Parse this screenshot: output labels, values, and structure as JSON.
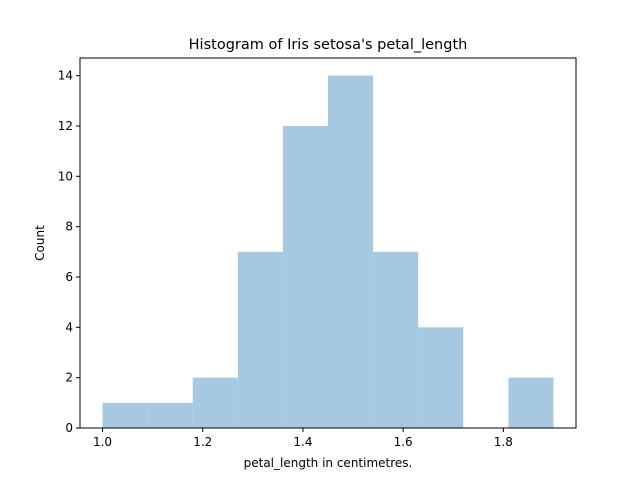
{
  "chart_data": {
    "type": "bar",
    "title": "Histogram of Iris setosa's petal_length",
    "xlabel": "petal_length in centimetres.",
    "ylabel": "Count",
    "bin_edges": [
      1.0,
      1.09,
      1.18,
      1.27,
      1.36,
      1.45,
      1.54,
      1.63,
      1.72,
      1.81,
      1.9
    ],
    "values": [
      1,
      1,
      2,
      7,
      12,
      14,
      7,
      4,
      0,
      2
    ],
    "xlim": [
      0.955,
      1.945
    ],
    "ylim": [
      0,
      14.7
    ],
    "xticks": [
      1.0,
      1.2,
      1.4,
      1.6,
      1.8
    ],
    "xtick_labels": [
      "1.0",
      "1.2",
      "1.4",
      "1.6",
      "1.8"
    ],
    "yticks": [
      0,
      2,
      4,
      6,
      8,
      10,
      12,
      14
    ],
    "ytick_labels": [
      "0",
      "2",
      "4",
      "6",
      "8",
      "10",
      "12",
      "14"
    ],
    "bar_color": "#a6c8e0",
    "grid": false,
    "legend": "none"
  }
}
